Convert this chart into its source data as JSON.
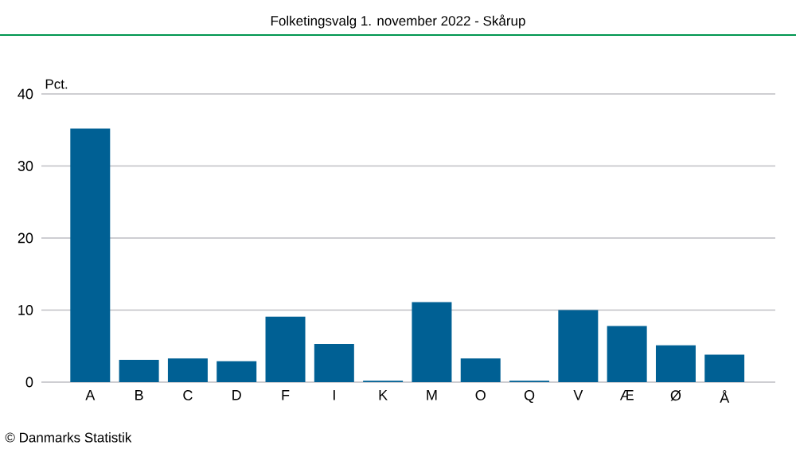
{
  "chart_data": {
    "type": "bar",
    "title": "Folketingsvalg 1. november 2022 - Skårup",
    "ylabel": "Pct.",
    "categories": [
      "A",
      "B",
      "C",
      "D",
      "F",
      "I",
      "K",
      "M",
      "O",
      "Q",
      "V",
      "Æ",
      "Ø",
      "Å"
    ],
    "values": [
      35.2,
      3.1,
      3.3,
      2.9,
      9.1,
      5.3,
      0.2,
      11.1,
      3.3,
      0.2,
      10.0,
      7.8,
      5.1,
      3.8
    ],
    "color": "#006094",
    "ylim": [
      0,
      40
    ],
    "yticks": [
      0,
      10,
      20,
      30,
      40
    ],
    "grid": "y",
    "annotations": [
      "© Danmarks Statistik"
    ]
  }
}
